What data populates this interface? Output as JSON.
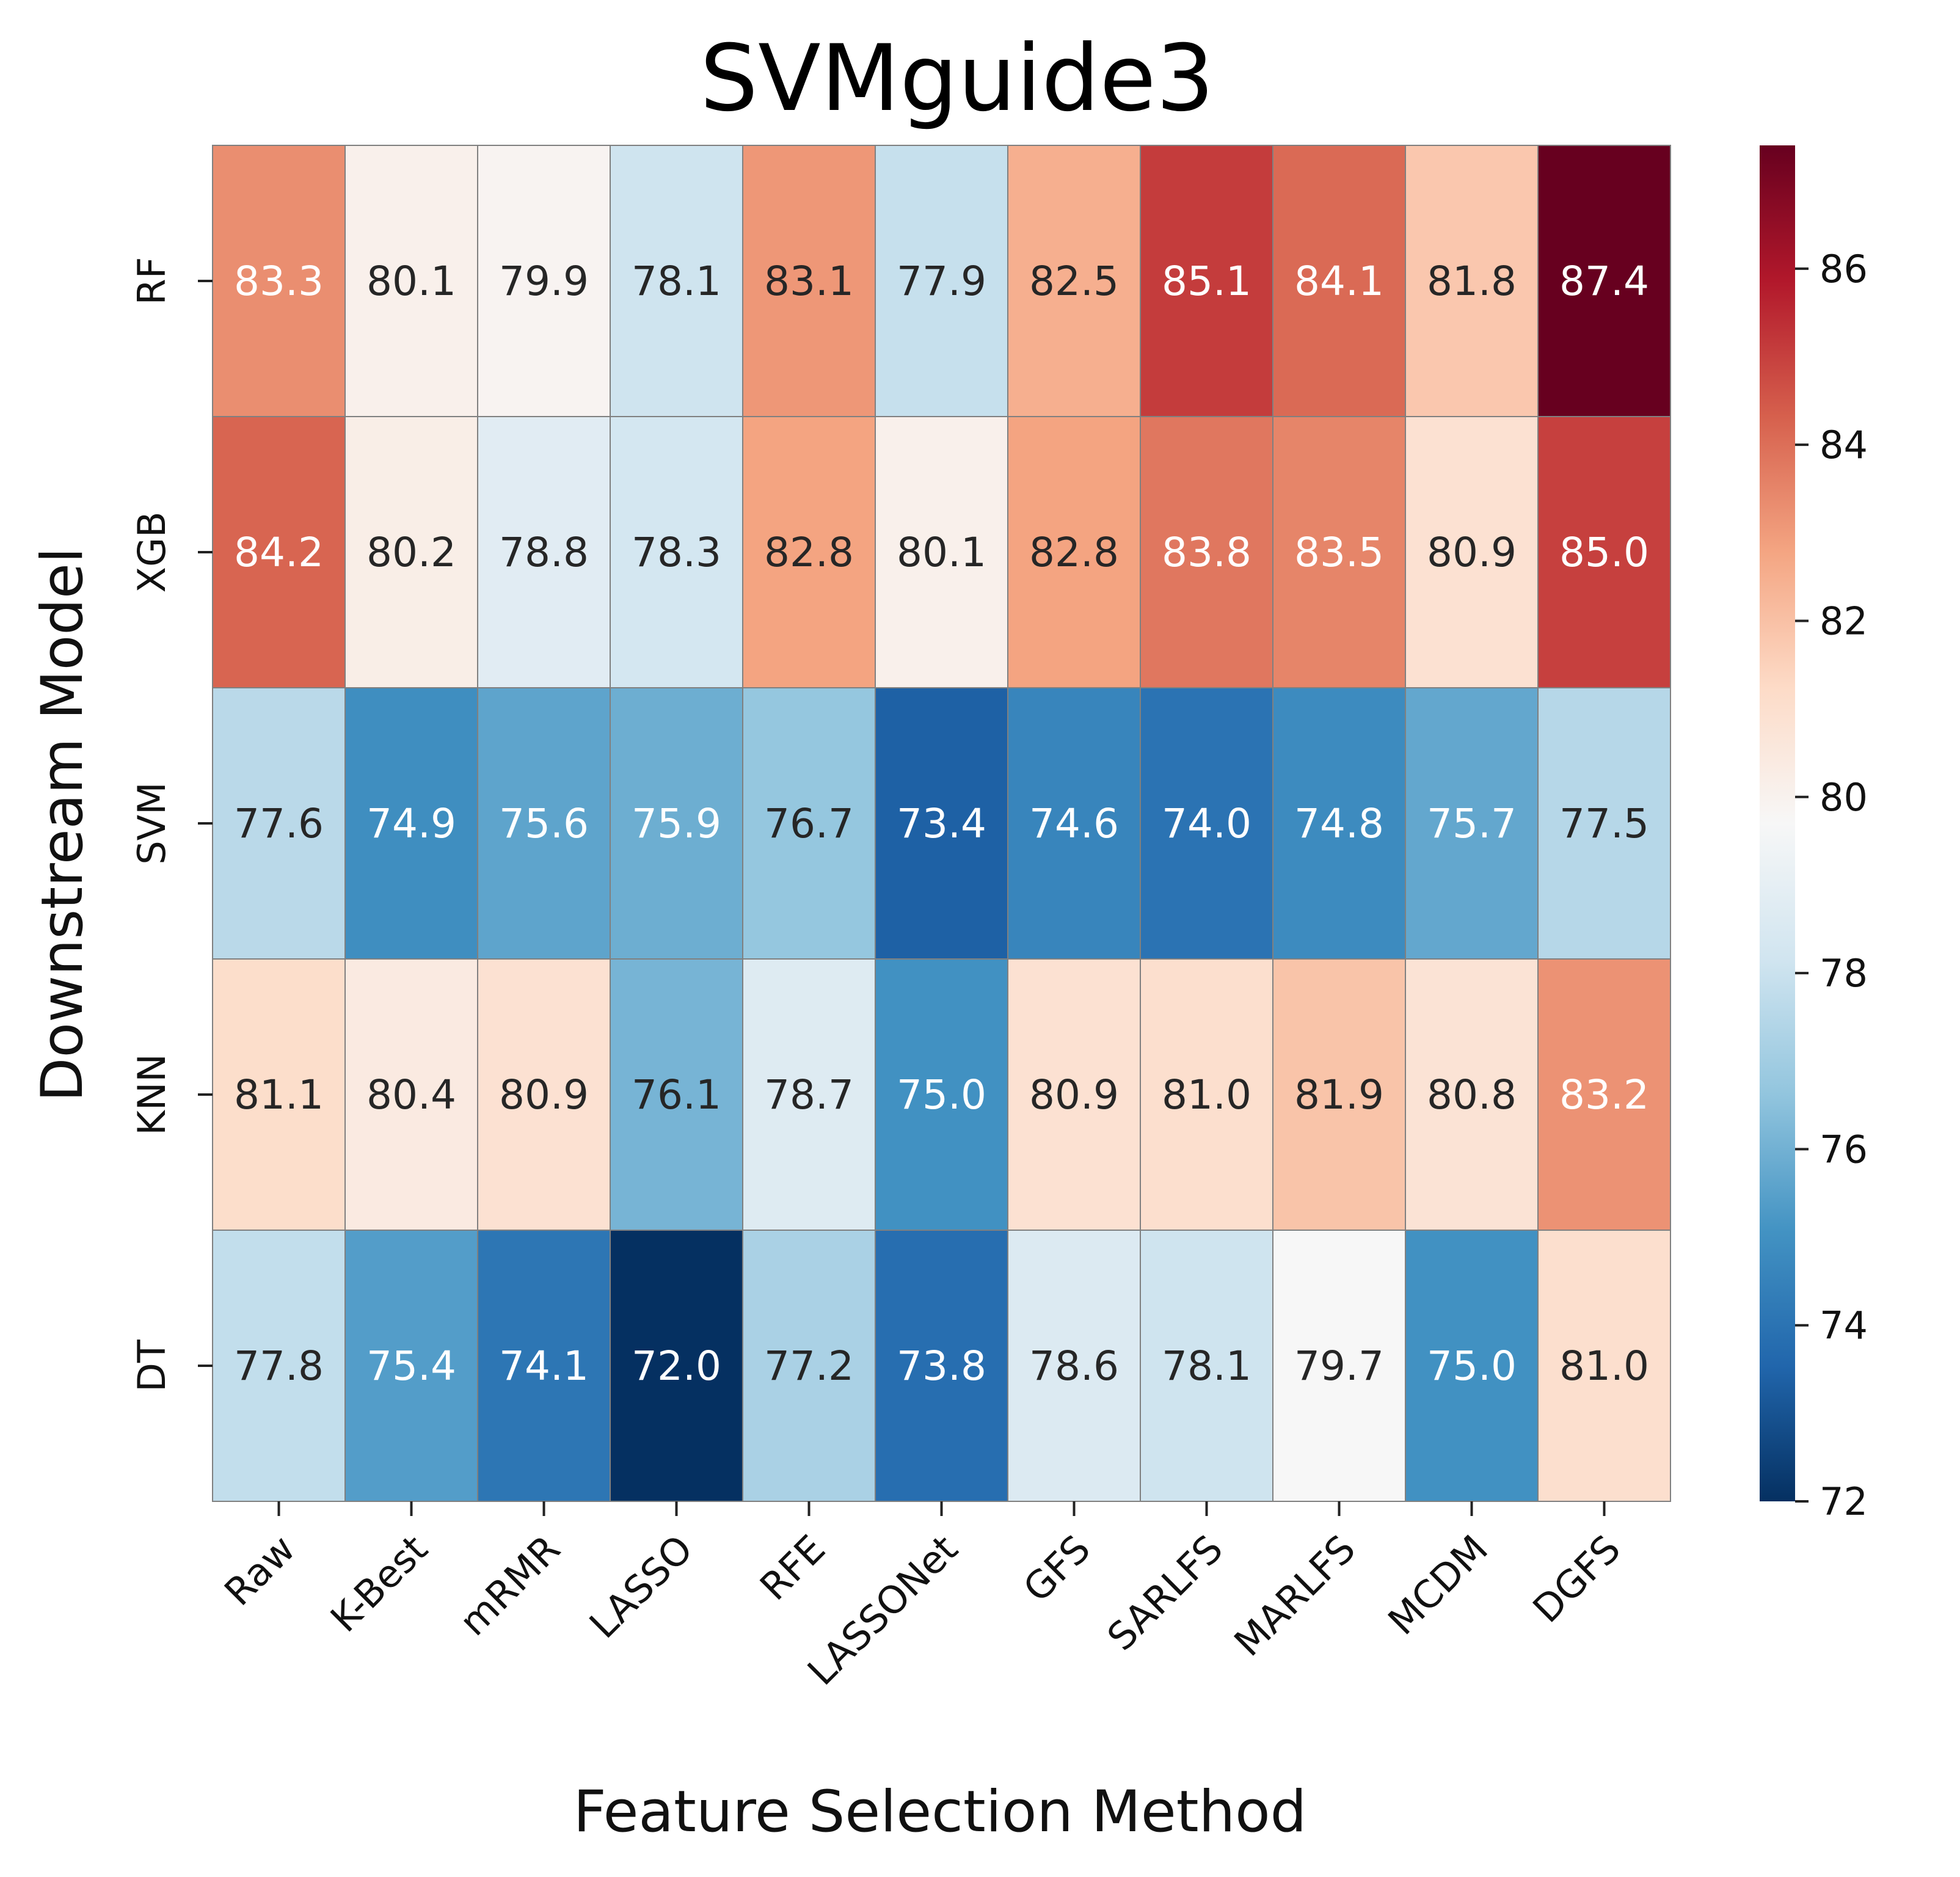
{
  "chart_data": {
    "type": "heatmap",
    "title": "SVMguide3",
    "xlabel": "Feature Selection Method",
    "ylabel": "Downstream Model",
    "x_categories": [
      "Raw",
      "K-Best",
      "mRMR",
      "LASSO",
      "RFE",
      "LASSONet",
      "GFS",
      "SARLFS",
      "MARLFS",
      "MCDM",
      "DGFS"
    ],
    "y_categories": [
      "RF",
      "XGB",
      "SVM",
      "KNN",
      "DT"
    ],
    "values": [
      [
        83.3,
        80.1,
        79.9,
        78.1,
        83.1,
        77.9,
        82.5,
        85.1,
        84.1,
        81.8,
        87.4
      ],
      [
        84.2,
        80.2,
        78.8,
        78.3,
        82.8,
        80.1,
        82.8,
        83.8,
        83.5,
        80.9,
        85.0
      ],
      [
        77.6,
        74.9,
        75.6,
        75.9,
        76.7,
        73.4,
        74.6,
        74.0,
        74.8,
        75.7,
        77.5
      ],
      [
        81.1,
        80.4,
        80.9,
        76.1,
        78.7,
        75.0,
        80.9,
        81.0,
        81.9,
        80.8,
        83.2
      ],
      [
        77.8,
        75.4,
        74.1,
        72.0,
        77.2,
        73.8,
        78.6,
        78.1,
        79.7,
        75.0,
        81.0
      ]
    ],
    "colormap": "RdBu_r",
    "colorbar": {
      "range": [
        72.0,
        87.4
      ],
      "ticks": [
        72,
        74,
        76,
        78,
        80,
        82,
        84,
        86
      ]
    },
    "annotations": true,
    "value_format": "0.1f",
    "cell_border_color": "#808080"
  }
}
